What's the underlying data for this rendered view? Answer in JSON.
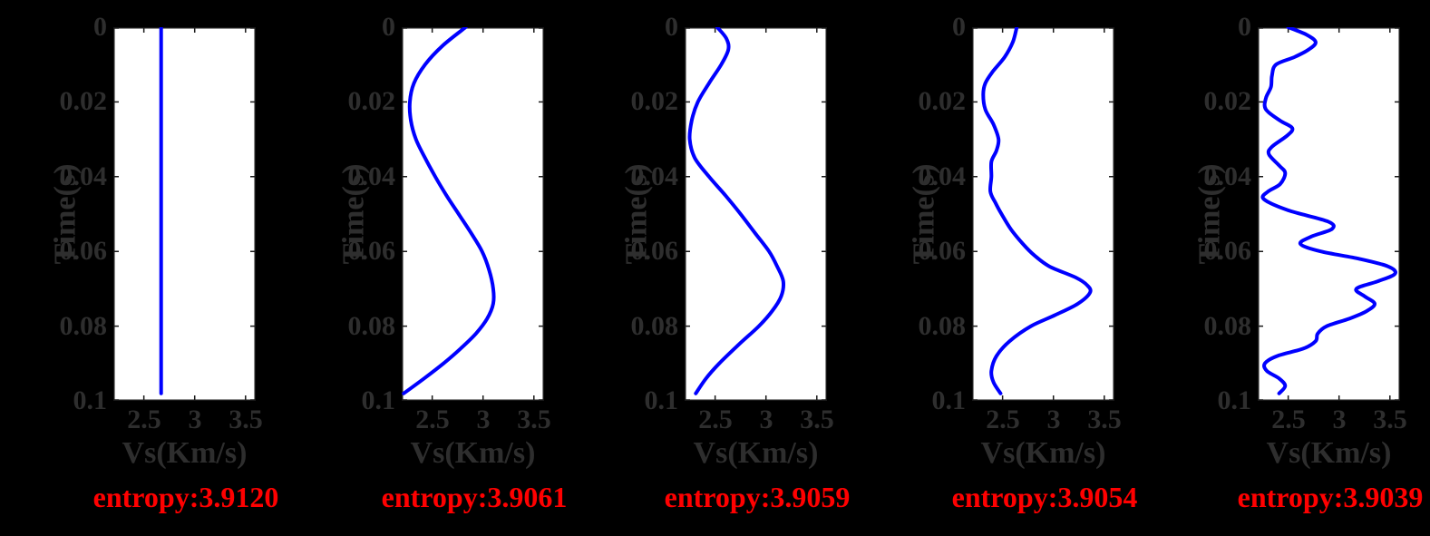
{
  "colors": {
    "figure_background": "#000000",
    "plot_background": "#ffffff",
    "curve": "#0000ff",
    "axis_text": "#2e2e2e",
    "axis_frame": "#1a1a1a",
    "annotation": "#ff0000"
  },
  "chart_data": [
    {
      "type": "line",
      "xlabel": "Vs(Km/s)",
      "ylabel": "Time(s)",
      "xlim": [
        2.2,
        3.6
      ],
      "ylim": [
        0,
        0.1
      ],
      "x_ticks": [
        2.5,
        3,
        3.5
      ],
      "y_ticks": [
        0,
        0.02,
        0.04,
        0.06,
        0.08,
        0.1
      ],
      "x_tick_labels": [
        "2.5",
        "3",
        "3.5"
      ],
      "y_tick_labels": [
        "0",
        "0.02",
        "0.04",
        "0.06",
        "0.08",
        "0.1"
      ],
      "y_axis_direction": "reversed",
      "grid": false,
      "line_color": "#0000ff",
      "annotation": "entropy:3.9120",
      "annotation_color": "#ff0000",
      "points": [
        [
          0,
          2.67
        ],
        [
          0.098,
          2.67
        ]
      ]
    },
    {
      "type": "line",
      "xlabel": "Vs(Km/s)",
      "ylabel": "Time(s)",
      "xlim": [
        2.2,
        3.6
      ],
      "ylim": [
        0,
        0.1
      ],
      "x_ticks": [
        2.5,
        3,
        3.5
      ],
      "y_ticks": [
        0,
        0.02,
        0.04,
        0.06,
        0.08,
        0.1
      ],
      "x_tick_labels": [
        "2.5",
        "3",
        "3.5"
      ],
      "y_tick_labels": [
        "0",
        "0.02",
        "0.04",
        "0.06",
        "0.08",
        "0.1"
      ],
      "y_axis_direction": "reversed",
      "grid": false,
      "line_color": "#0000ff",
      "annotation": "entropy:3.9061",
      "annotation_color": "#ff0000",
      "points": [
        [
          0,
          2.83
        ],
        [
          0.005,
          2.6
        ],
        [
          0.01,
          2.43
        ],
        [
          0.015,
          2.32
        ],
        [
          0.02,
          2.28
        ],
        [
          0.025,
          2.29
        ],
        [
          0.03,
          2.34
        ],
        [
          0.035,
          2.43
        ],
        [
          0.04,
          2.53
        ],
        [
          0.045,
          2.64
        ],
        [
          0.05,
          2.76
        ],
        [
          0.055,
          2.88
        ],
        [
          0.06,
          2.99
        ],
        [
          0.065,
          3.06
        ],
        [
          0.07,
          3.1
        ],
        [
          0.074,
          3.1
        ],
        [
          0.078,
          3.04
        ],
        [
          0.082,
          2.93
        ],
        [
          0.086,
          2.78
        ],
        [
          0.09,
          2.61
        ],
        [
          0.094,
          2.42
        ],
        [
          0.098,
          2.22
        ]
      ]
    },
    {
      "type": "line",
      "xlabel": "Vs(Km/s)",
      "ylabel": "Time(s)",
      "xlim": [
        2.2,
        3.6
      ],
      "ylim": [
        0,
        0.1
      ],
      "x_ticks": [
        2.5,
        3,
        3.5
      ],
      "y_ticks": [
        0,
        0.02,
        0.04,
        0.06,
        0.08,
        0.1
      ],
      "x_tick_labels": [
        "2.5",
        "3",
        "3.5"
      ],
      "y_tick_labels": [
        "0",
        "0.02",
        "0.04",
        "0.06",
        "0.08",
        "0.1"
      ],
      "y_axis_direction": "reversed",
      "grid": false,
      "line_color": "#0000ff",
      "annotation": "entropy:3.9059",
      "annotation_color": "#ff0000",
      "points": [
        [
          0,
          2.52
        ],
        [
          0.003,
          2.61
        ],
        [
          0.006,
          2.63
        ],
        [
          0.01,
          2.56
        ],
        [
          0.015,
          2.44
        ],
        [
          0.02,
          2.33
        ],
        [
          0.025,
          2.27
        ],
        [
          0.03,
          2.25
        ],
        [
          0.035,
          2.3
        ],
        [
          0.04,
          2.44
        ],
        [
          0.045,
          2.6
        ],
        [
          0.05,
          2.75
        ],
        [
          0.055,
          2.89
        ],
        [
          0.06,
          3.03
        ],
        [
          0.064,
          3.11
        ],
        [
          0.068,
          3.17
        ],
        [
          0.072,
          3.15
        ],
        [
          0.076,
          3.06
        ],
        [
          0.08,
          2.93
        ],
        [
          0.085,
          2.73
        ],
        [
          0.09,
          2.54
        ],
        [
          0.094,
          2.41
        ],
        [
          0.098,
          2.31
        ]
      ]
    },
    {
      "type": "line",
      "xlabel": "Vs(Km/s)",
      "ylabel": "Time(s)",
      "xlim": [
        2.2,
        3.6
      ],
      "ylim": [
        0,
        0.1
      ],
      "x_ticks": [
        2.5,
        3,
        3.5
      ],
      "y_ticks": [
        0,
        0.02,
        0.04,
        0.06,
        0.08,
        0.1
      ],
      "x_tick_labels": [
        "2.5",
        "3",
        "3.5"
      ],
      "y_tick_labels": [
        "0",
        "0.02",
        "0.04",
        "0.06",
        "0.08",
        "0.1"
      ],
      "y_axis_direction": "reversed",
      "grid": false,
      "line_color": "#0000ff",
      "annotation": "entropy:3.9054",
      "annotation_color": "#ff0000",
      "points": [
        [
          0,
          2.64
        ],
        [
          0.004,
          2.6
        ],
        [
          0.008,
          2.52
        ],
        [
          0.012,
          2.4
        ],
        [
          0.015,
          2.33
        ],
        [
          0.018,
          2.31
        ],
        [
          0.022,
          2.33
        ],
        [
          0.026,
          2.41
        ],
        [
          0.03,
          2.46
        ],
        [
          0.033,
          2.44
        ],
        [
          0.036,
          2.39
        ],
        [
          0.04,
          2.39
        ],
        [
          0.044,
          2.38
        ],
        [
          0.047,
          2.43
        ],
        [
          0.05,
          2.49
        ],
        [
          0.054,
          2.58
        ],
        [
          0.058,
          2.7
        ],
        [
          0.061,
          2.81
        ],
        [
          0.064,
          2.96
        ],
        [
          0.067,
          3.22
        ],
        [
          0.069,
          3.33
        ],
        [
          0.071,
          3.36
        ],
        [
          0.074,
          3.24
        ],
        [
          0.077,
          3.02
        ],
        [
          0.08,
          2.78
        ],
        [
          0.084,
          2.57
        ],
        [
          0.088,
          2.44
        ],
        [
          0.092,
          2.39
        ],
        [
          0.095,
          2.41
        ],
        [
          0.098,
          2.48
        ]
      ]
    },
    {
      "type": "line",
      "xlabel": "Vs(Km/s)",
      "ylabel": "Time(s)",
      "xlim": [
        2.2,
        3.6
      ],
      "ylim": [
        0,
        0.1
      ],
      "x_ticks": [
        2.5,
        3,
        3.5
      ],
      "y_ticks": [
        0,
        0.02,
        0.04,
        0.06,
        0.08,
        0.1
      ],
      "x_tick_labels": [
        "2.5",
        "3",
        "3.5"
      ],
      "y_tick_labels": [
        "0",
        "0.02",
        "0.04",
        "0.06",
        "0.08",
        "0.1"
      ],
      "y_axis_direction": "reversed",
      "grid": false,
      "line_color": "#0000ff",
      "annotation": "entropy:3.9039",
      "annotation_color": "#ff0000",
      "points": [
        [
          0,
          2.5
        ],
        [
          0.002,
          2.68
        ],
        [
          0.004,
          2.77
        ],
        [
          0.006,
          2.7
        ],
        [
          0.008,
          2.56
        ],
        [
          0.01,
          2.38
        ],
        [
          0.013,
          2.34
        ],
        [
          0.016,
          2.33
        ],
        [
          0.019,
          2.28
        ],
        [
          0.022,
          2.28
        ],
        [
          0.025,
          2.42
        ],
        [
          0.027,
          2.54
        ],
        [
          0.029,
          2.49
        ],
        [
          0.032,
          2.34
        ],
        [
          0.034,
          2.31
        ],
        [
          0.037,
          2.41
        ],
        [
          0.039,
          2.47
        ],
        [
          0.042,
          2.42
        ],
        [
          0.044,
          2.3
        ],
        [
          0.046,
          2.26
        ],
        [
          0.049,
          2.5
        ],
        [
          0.052,
          2.89
        ],
        [
          0.054,
          2.93
        ],
        [
          0.056,
          2.73
        ],
        [
          0.058,
          2.62
        ],
        [
          0.06,
          2.82
        ],
        [
          0.062,
          3.2
        ],
        [
          0.064,
          3.48
        ],
        [
          0.066,
          3.55
        ],
        [
          0.068,
          3.38
        ],
        [
          0.07,
          3.17
        ],
        [
          0.072,
          3.25
        ],
        [
          0.074,
          3.35
        ],
        [
          0.076,
          3.27
        ],
        [
          0.078,
          3.1
        ],
        [
          0.08,
          2.88
        ],
        [
          0.082,
          2.79
        ],
        [
          0.084,
          2.77
        ],
        [
          0.086,
          2.65
        ],
        [
          0.088,
          2.39
        ],
        [
          0.09,
          2.27
        ],
        [
          0.092,
          2.29
        ],
        [
          0.094,
          2.41
        ],
        [
          0.096,
          2.47
        ],
        [
          0.098,
          2.41
        ]
      ]
    }
  ]
}
